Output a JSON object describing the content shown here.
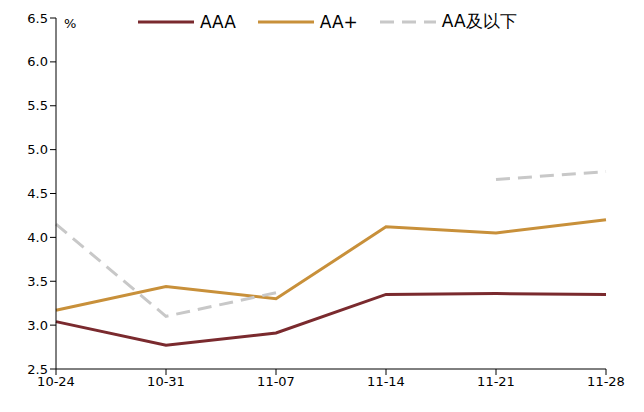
{
  "chart_data": {
    "type": "line",
    "y_label": "%",
    "categories": [
      "10-24",
      "10-31",
      "11-07",
      "11-14",
      "11-21",
      "11-28"
    ],
    "series": [
      {
        "name": "AAA",
        "color": "#7a2a2e",
        "line_style": "solid",
        "values": [
          3.04,
          2.77,
          2.91,
          3.35,
          3.36,
          3.35
        ]
      },
      {
        "name": "AA+",
        "color": "#c8903a",
        "line_style": "solid",
        "values": [
          3.17,
          3.44,
          3.3,
          4.12,
          4.05,
          4.2
        ]
      },
      {
        "name": "AA及以下",
        "color": "#c8c8c8",
        "line_style": "dashed",
        "values": [
          4.15,
          3.1,
          3.37,
          null,
          4.66,
          4.75
        ]
      }
    ],
    "ylim": [
      2.5,
      6.5
    ],
    "yticks": [
      2.5,
      {
        "value": 3,
        "label": "3.0"
      },
      3.5,
      {
        "value": 4,
        "label": "4.0"
      },
      4.5,
      {
        "value": 5,
        "label": "5.0"
      },
      5.5,
      {
        "value": 6,
        "label": "6.0"
      },
      6.5
    ],
    "grid": false,
    "legend": "top"
  }
}
